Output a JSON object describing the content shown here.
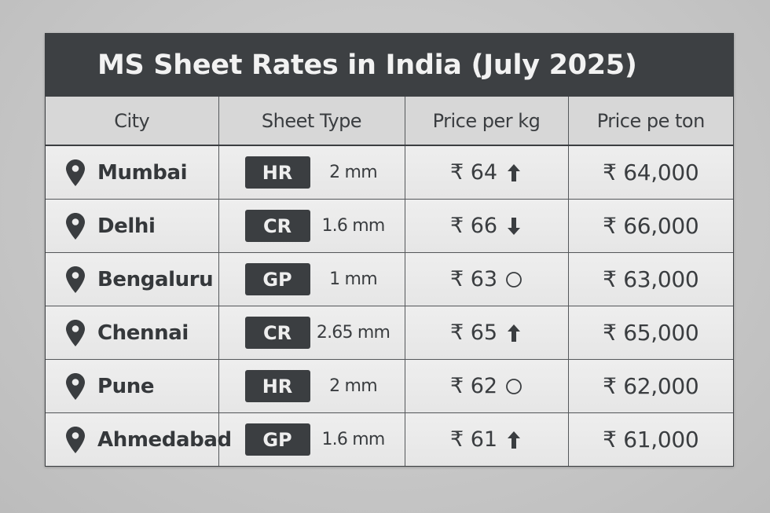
{
  "title": "MS Sheet Rates in India (July 2025)",
  "columns": [
    "City",
    "Sheet Type",
    "Price per kg",
    "Price pe ton"
  ],
  "currency_symbol": "₹",
  "colors": {
    "title_bar": "#3d4043",
    "title_text": "#f2f2f2",
    "header_bg": "#d7d7d7",
    "cell_bg": "#ebebeb",
    "badge_bg": "#3b3e41",
    "text": "#3a3d40",
    "page_bg": "#c8c8c8"
  },
  "rows": [
    {
      "city": "Mumbai",
      "city_icon": "map-pin-icon",
      "type": "HR",
      "thickness": "2 mm",
      "price_kg": "₹ 64",
      "trend": "up",
      "trend_icon": "arrow-up-icon",
      "price_ton": "₹ 64,000"
    },
    {
      "city": "Delhi",
      "city_icon": "map-pin-icon",
      "type": "CR",
      "thickness": "1.6 mm",
      "price_kg": "₹ 66",
      "trend": "down",
      "trend_icon": "arrow-down-icon",
      "price_ton": "₹ 66,000"
    },
    {
      "city": "Bengaluru",
      "city_icon": "map-pin-icon",
      "type": "GP",
      "thickness": "1 mm",
      "price_kg": "₹ 63",
      "trend": "stable",
      "trend_icon": "circle-icon",
      "price_ton": "₹ 63,000"
    },
    {
      "city": "Chennai",
      "city_icon": "map-pin-icon",
      "type": "CR",
      "thickness": "2.65 mm",
      "price_kg": "₹ 65",
      "trend": "up",
      "trend_icon": "arrow-up-icon",
      "price_ton": "₹ 65,000"
    },
    {
      "city": "Pune",
      "city_icon": "map-pin-icon",
      "type": "HR",
      "thickness": "2 mm",
      "price_kg": "₹ 62",
      "trend": "stable",
      "trend_icon": "circle-icon",
      "price_ton": "₹ 62,000"
    },
    {
      "city": "Ahmedabad",
      "city_icon": "map-pin-icon",
      "type": "GP",
      "thickness": "1.6 mm",
      "price_kg": "₹ 61",
      "trend": "up",
      "trend_icon": "arrow-up-icon",
      "price_ton": "₹ 61,000"
    }
  ]
}
